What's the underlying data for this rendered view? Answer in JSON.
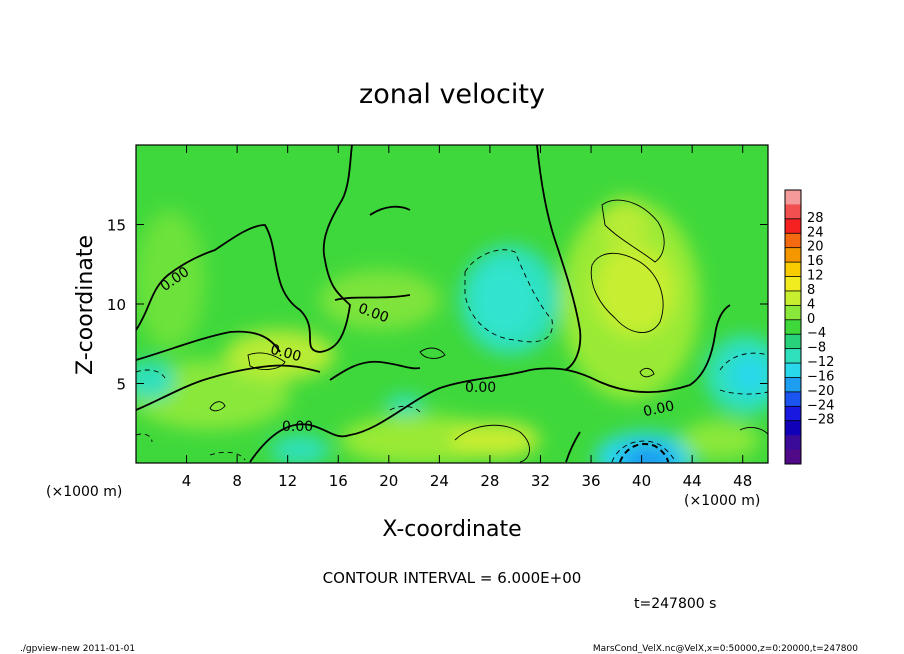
{
  "chart_data": {
    "type": "heatmap",
    "title": "zonal velocity",
    "xlabel": "X-coordinate",
    "ylabel": "Z-coordinate",
    "x_unit_left": "(×1000 m)",
    "x_unit_right": "(×1000 m)",
    "xlim": [
      0,
      50
    ],
    "ylim": [
      0,
      20
    ],
    "x_ticks": [
      4,
      8,
      12,
      16,
      20,
      24,
      28,
      32,
      36,
      40,
      44,
      48
    ],
    "y_ticks": [
      5,
      10,
      15
    ],
    "contour_interval_label": "CONTOUR INTERVAL = 6.000E+00",
    "contour_labels": [
      {
        "text": "0.00",
        "x": 3.3,
        "y": 11.6
      },
      {
        "text": "0.00",
        "x": 11.8,
        "y": 6.8
      },
      {
        "text": "0.00",
        "x": 19.0,
        "y": 9.6
      },
      {
        "text": "0.00",
        "x": 13.0,
        "y": 2.0
      },
      {
        "text": "0.00",
        "x": 27.7,
        "y": 4.5
      },
      {
        "text": "0.00",
        "x": 40.5,
        "y": 3.3
      }
    ],
    "colorbar": {
      "labels": [
        "28",
        "24",
        "20",
        "16",
        "12",
        "8",
        "4",
        "0",
        "−4",
        "−8",
        "−12",
        "−16",
        "−20",
        "−24",
        "−28"
      ],
      "levels": [
        28,
        24,
        20,
        16,
        12,
        8,
        4,
        0,
        -4,
        -8,
        -12,
        -16,
        -20,
        -24,
        -28
      ],
      "colors": [
        "#f49a9a",
        "#f25050",
        "#f52020",
        "#f36a10",
        "#f59800",
        "#f8cc00",
        "#f0ec20",
        "#c8ee30",
        "#8ae83a",
        "#3ed83a",
        "#28d27a",
        "#2ee0bc",
        "#2ad8ec",
        "#1e9ef0",
        "#1a55f0",
        "#1818e0",
        "#1000b8",
        "#3a0a98",
        "#500a88"
      ]
    }
  },
  "time_label": "t=247800 s",
  "footer_left": "./gpview-new   2011-01-01",
  "footer_right": "MarsCond_VelX.nc@VelX,x=0:50000,z=0:20000,t=247800"
}
